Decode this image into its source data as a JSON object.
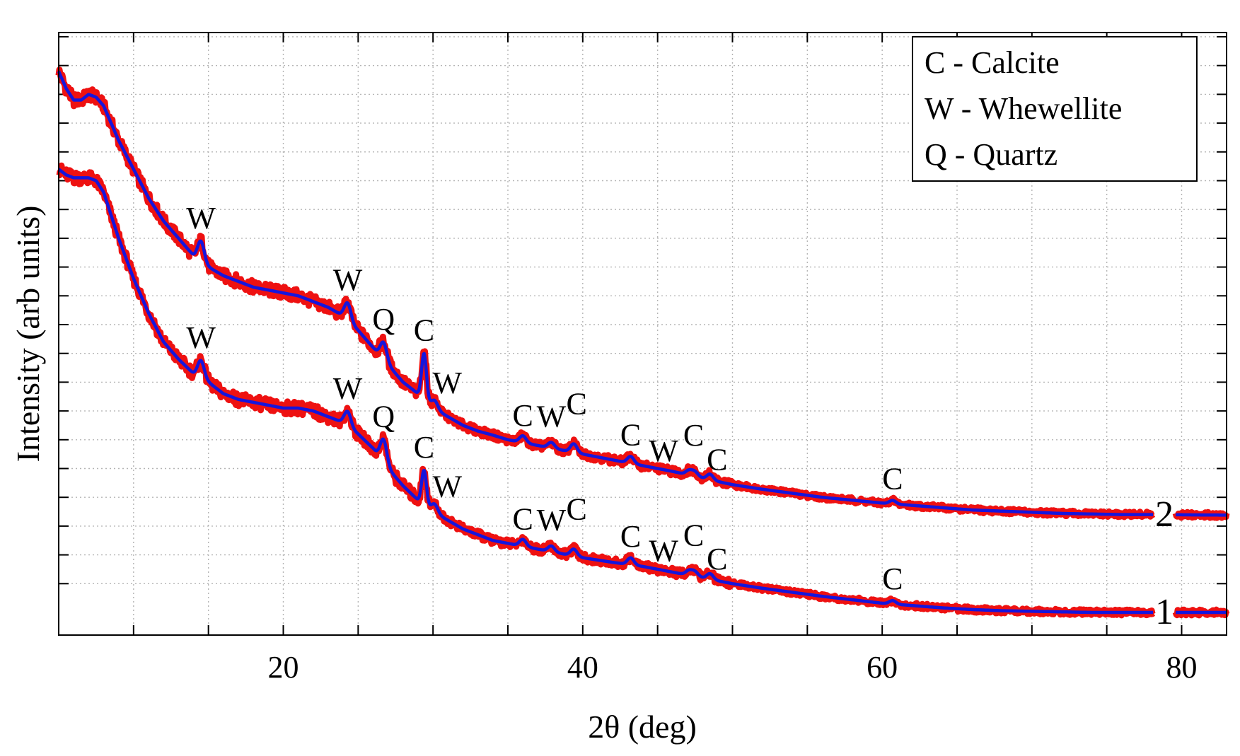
{
  "chart_data": {
    "type": "line",
    "title": "",
    "xlabel": "2θ (deg)",
    "ylabel": "Intensity (arb units)",
    "xlim": [
      5,
      83
    ],
    "ylim": [
      0,
      100
    ],
    "x_ticks": [
      "20",
      "40",
      "60",
      "80"
    ],
    "x_tick_values": [
      20,
      40,
      60,
      80
    ],
    "x_minor_step": 5,
    "y_tick_step": 5,
    "y_tick_labels_shown": false,
    "grid": true,
    "grid_style": "dotted",
    "colors": {
      "measured": "#ee1111",
      "fit": "#1515dd"
    },
    "legend": {
      "placement": "top-right",
      "entries": [
        "C - Calcite",
        "W - Whewellite",
        "Q - Quartz"
      ]
    },
    "series": [
      {
        "name": "2",
        "color_measured": "#ee1111",
        "color_fit": "#1515dd",
        "x": [
          5,
          5.5,
          6,
          6.5,
          7,
          7.5,
          8,
          8.5,
          9,
          10,
          11,
          12,
          13,
          14,
          15,
          16,
          17,
          18,
          19,
          20,
          21,
          22,
          23,
          24,
          25,
          26,
          27,
          28,
          29,
          30,
          31,
          32,
          33,
          34,
          35,
          36,
          37,
          38,
          39,
          40,
          42,
          44,
          46,
          48,
          50,
          52,
          54,
          56,
          58,
          60,
          62,
          64,
          66,
          68,
          70,
          72,
          74,
          76,
          78,
          83
        ],
        "y": [
          94,
          91,
          89,
          89,
          90,
          89.5,
          88,
          85,
          82,
          77,
          72,
          68,
          65,
          62,
          60,
          58.5,
          57.5,
          56.5,
          56,
          55.5,
          55,
          54,
          53,
          51.5,
          49,
          46,
          43,
          40,
          38,
          35.5,
          34,
          32.5,
          31.5,
          30.8,
          30,
          29.5,
          29,
          28.5,
          28,
          27.5,
          26.5,
          25.5,
          24.5,
          23.3,
          22.2,
          21.4,
          20.7,
          20,
          19.5,
          19,
          18.6,
          18.2,
          17.8,
          17.6,
          17.4,
          17.2,
          17.1,
          17,
          17,
          16.9
        ]
      },
      {
        "name": "1",
        "color_measured": "#ee1111",
        "color_fit": "#1515dd",
        "x": [
          5,
          5.5,
          6,
          6.5,
          7,
          7.5,
          8,
          8.5,
          9,
          10,
          11,
          12,
          13,
          14,
          15,
          16,
          17,
          18,
          19,
          20,
          21,
          22,
          23,
          24,
          25,
          26,
          27,
          28,
          29,
          30,
          31,
          32,
          33,
          34,
          35,
          36,
          37,
          38,
          39,
          40,
          42,
          44,
          46,
          48,
          50,
          52,
          54,
          56,
          58,
          60,
          62,
          64,
          66,
          68,
          70,
          72,
          74,
          76,
          78,
          83
        ],
        "y": [
          77,
          76,
          75.5,
          75.5,
          75.5,
          75,
          73,
          69,
          65,
          58,
          52,
          47,
          44,
          41.5,
          40,
          38,
          37,
          36.5,
          36,
          35.5,
          35.5,
          35,
          34,
          33,
          31,
          28.5,
          25,
          22,
          19.5,
          17.5,
          16,
          14.5,
          13.5,
          12.5,
          12,
          11.5,
          11,
          10.5,
          10,
          9.5,
          8.7,
          8,
          7,
          6,
          5,
          4.2,
          3.5,
          2.8,
          2.2,
          1.6,
          1.2,
          0.8,
          0.5,
          0.3,
          0.2,
          0.1,
          0,
          0,
          0,
          0
        ]
      }
    ],
    "peaks": [
      {
        "series": "2",
        "x": 14.5,
        "height": 3.5,
        "label": "W"
      },
      {
        "series": "2",
        "x": 24.3,
        "height": 3,
        "label": "W"
      },
      {
        "series": "2",
        "x": 26.7,
        "height": 3,
        "label": "Q"
      },
      {
        "series": "2",
        "x": 29.4,
        "height": 8,
        "label": "C"
      },
      {
        "series": "2",
        "x": 30.1,
        "height": 1.5,
        "label": "W"
      },
      {
        "series": "2",
        "x": 36.0,
        "height": 1.2,
        "label": "C"
      },
      {
        "series": "2",
        "x": 37.9,
        "height": 1,
        "label": "W"
      },
      {
        "series": "2",
        "x": 39.4,
        "height": 1.5,
        "label": "C"
      },
      {
        "series": "2",
        "x": 43.2,
        "height": 1.2,
        "label": "C"
      },
      {
        "series": "2",
        "x": 47.1,
        "height": 0.8,
        "label": "W"
      },
      {
        "series": "2",
        "x": 47.5,
        "height": 0.8,
        "label": "C"
      },
      {
        "series": "2",
        "x": 48.5,
        "height": 1,
        "label": "C"
      },
      {
        "series": "2",
        "x": 60.7,
        "height": 0.6,
        "label": "C"
      },
      {
        "series": "1",
        "x": 14.5,
        "height": 3,
        "label": "W"
      },
      {
        "series": "1",
        "x": 24.3,
        "height": 2.5,
        "label": "W"
      },
      {
        "series": "1",
        "x": 26.7,
        "height": 4,
        "label": "Q"
      },
      {
        "series": "1",
        "x": 29.4,
        "height": 6,
        "label": "C"
      },
      {
        "series": "1",
        "x": 30.1,
        "height": 1.5,
        "label": "W"
      },
      {
        "series": "1",
        "x": 36.0,
        "height": 1.2,
        "label": "C"
      },
      {
        "series": "1",
        "x": 37.9,
        "height": 1,
        "label": "W"
      },
      {
        "series": "1",
        "x": 39.4,
        "height": 1.2,
        "label": "C"
      },
      {
        "series": "1",
        "x": 43.2,
        "height": 1.2,
        "label": "C"
      },
      {
        "series": "1",
        "x": 47.1,
        "height": 0.8,
        "label": "W"
      },
      {
        "series": "1",
        "x": 47.5,
        "height": 0.8,
        "label": "C"
      },
      {
        "series": "1",
        "x": 48.5,
        "height": 1,
        "label": "C"
      },
      {
        "series": "1",
        "x": 60.7,
        "height": 0.6,
        "label": "C"
      }
    ]
  }
}
